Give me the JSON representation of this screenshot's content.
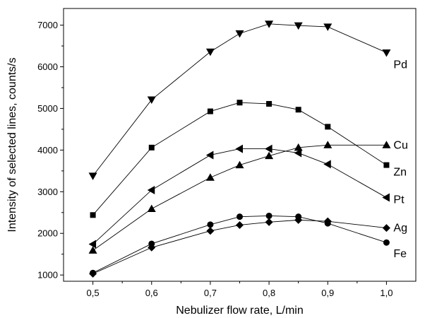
{
  "chart_data": {
    "type": "line",
    "xlabel": "Nebulizer flow rate, L/min",
    "ylabel": "Intensity of selected lines, counts/s",
    "xlim": [
      0.45,
      1.05
    ],
    "ylim": [
      850,
      7400
    ],
    "x_ticks": [
      0.5,
      0.6,
      0.7,
      0.8,
      0.9,
      1.0
    ],
    "x_tick_labels": [
      "0,5",
      "0,6",
      "0,7",
      "0,8",
      "0,9",
      "1,0"
    ],
    "y_ticks": [
      1000,
      2000,
      3000,
      4000,
      5000,
      6000,
      7000
    ],
    "y_tick_labels": [
      "1000",
      "2000",
      "3000",
      "4000",
      "5000",
      "6000",
      "7000"
    ],
    "grid": false,
    "legend": "labels at line ends",
    "series": [
      {
        "name": "Pd",
        "marker": "triangle-down",
        "x": [
          0.5,
          0.6,
          0.7,
          0.75,
          0.8,
          0.85,
          0.9,
          1.0
        ],
        "values": [
          3380,
          5210,
          6360,
          6800,
          7030,
          6990,
          6960,
          6340
        ]
      },
      {
        "name": "Zn",
        "marker": "square",
        "x": [
          0.5,
          0.6,
          0.7,
          0.75,
          0.8,
          0.85,
          0.9,
          1.0
        ],
        "values": [
          2440,
          4060,
          4930,
          5140,
          5110,
          4970,
          4560,
          3640
        ]
      },
      {
        "name": "Cu",
        "marker": "triangle-up",
        "x": [
          0.5,
          0.6,
          0.7,
          0.75,
          0.8,
          0.85,
          0.9,
          1.0
        ],
        "values": [
          1590,
          2590,
          3340,
          3640,
          3860,
          4060,
          4120,
          4120
        ]
      },
      {
        "name": "Pt",
        "marker": "triangle-left",
        "x": [
          0.5,
          0.6,
          0.7,
          0.75,
          0.8,
          0.85,
          0.9,
          1.0
        ],
        "values": [
          1740,
          3040,
          3880,
          4030,
          4030,
          3930,
          3660,
          2860
        ]
      },
      {
        "name": "Ag",
        "marker": "diamond",
        "x": [
          0.5,
          0.6,
          0.7,
          0.75,
          0.8,
          0.85,
          0.9,
          1.0
        ],
        "values": [
          1030,
          1660,
          2060,
          2200,
          2270,
          2320,
          2290,
          2130
        ]
      },
      {
        "name": "Fe",
        "marker": "circle",
        "x": [
          0.5,
          0.6,
          0.7,
          0.75,
          0.8,
          0.85,
          0.9,
          1.0
        ],
        "values": [
          1050,
          1750,
          2210,
          2400,
          2420,
          2400,
          2240,
          1780
        ]
      }
    ]
  }
}
